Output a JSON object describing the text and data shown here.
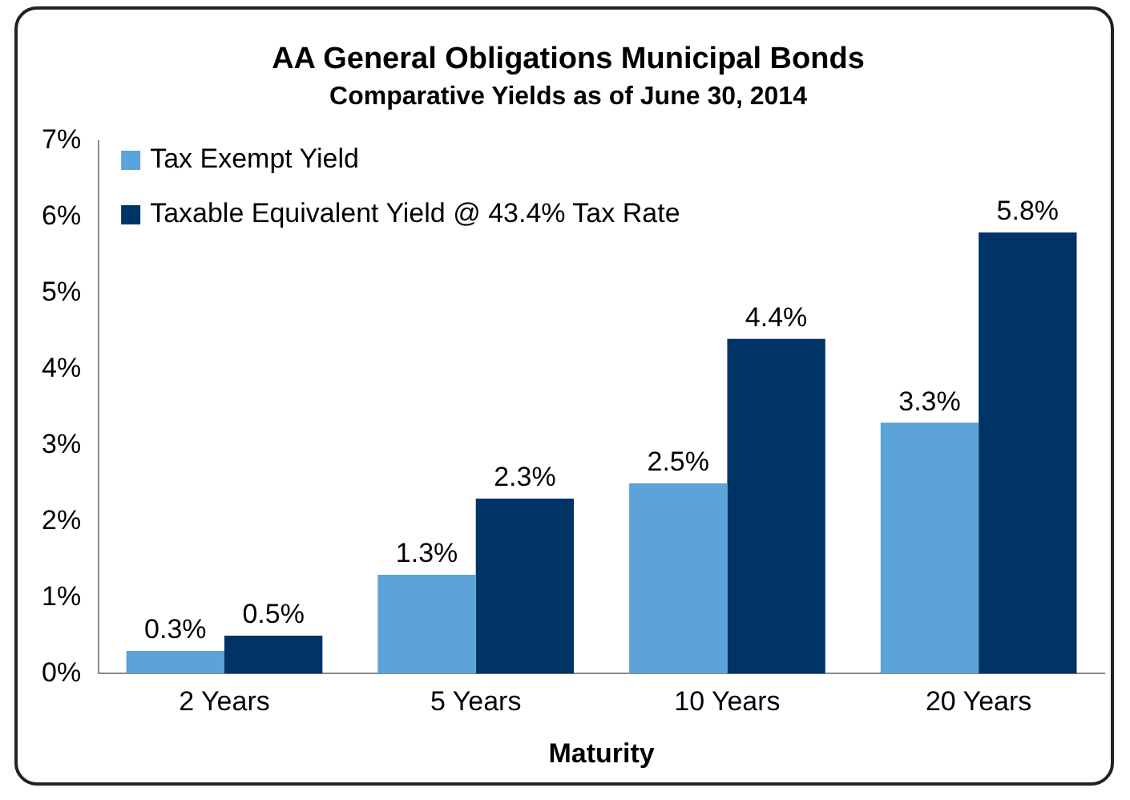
{
  "chart_data": {
    "type": "bar",
    "title": "AA General Obligations Municipal Bonds",
    "subtitle": "Comparative Yields as of June 30, 2014",
    "xlabel": "Maturity",
    "categories": [
      "2 Years",
      "5 Years",
      "10 Years",
      "20 Years"
    ],
    "series": [
      {
        "name": "Tax Exempt Yield",
        "color": "#5ba3d9",
        "values": [
          0.3,
          1.3,
          2.5,
          3.3
        ],
        "value_labels": [
          "0.3%",
          "1.3%",
          "2.5%",
          "3.3%"
        ]
      },
      {
        "name": "Taxable Equivalent Yield @ 43.4% Tax Rate",
        "color": "#003366",
        "values": [
          0.5,
          2.3,
          4.4,
          5.8
        ],
        "value_labels": [
          "0.5%",
          "2.3%",
          "4.4%",
          "5.8%"
        ]
      }
    ],
    "ylim": [
      0,
      7
    ],
    "yticks": [
      {
        "value": 0,
        "label": "0%"
      },
      {
        "value": 1,
        "label": "1%"
      },
      {
        "value": 2,
        "label": "2%"
      },
      {
        "value": 3,
        "label": "3%"
      },
      {
        "value": 4,
        "label": "4%"
      },
      {
        "value": 5,
        "label": "5%"
      },
      {
        "value": 6,
        "label": "6%"
      },
      {
        "value": 7,
        "label": "7%"
      }
    ],
    "grid": false,
    "legend": "top left"
  }
}
